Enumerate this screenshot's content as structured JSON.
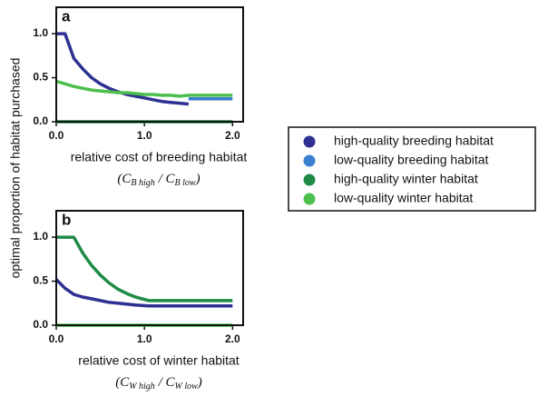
{
  "ylabel": "optimal proportion of habitat purchased",
  "legend_position": "right",
  "chart_data": [
    {
      "type": "line",
      "panel_label": "a",
      "xlabel": "relative cost of breeding habitat",
      "xlabel_formula": [
        "(C",
        "B high",
        " / C",
        "B low",
        ")"
      ],
      "xlim": [
        0,
        2.12
      ],
      "ylim": [
        0,
        1.3
      ],
      "xticks": [
        {
          "value": 0,
          "label": "0.0"
        },
        {
          "value": 1,
          "label": "1.0"
        },
        {
          "value": 2,
          "label": "2.0"
        }
      ],
      "yticks": [
        {
          "value": 0,
          "label": "0.0"
        },
        {
          "value": 0.5,
          "label": "0.5"
        },
        {
          "value": 1,
          "label": "1.0"
        }
      ],
      "x": [
        0,
        0.1,
        0.2,
        0.3,
        0.4,
        0.5,
        0.6,
        0.7,
        0.8,
        0.9,
        1.0,
        1.1,
        1.2,
        1.3,
        1.4,
        1.5,
        1.6,
        1.7,
        1.8,
        1.9,
        2.0
      ],
      "series": [
        {
          "name": "high-quality breeding habitat",
          "color": "#2e3192",
          "values": [
            1,
            1,
            0.72,
            0.6,
            0.5,
            0.43,
            0.38,
            0.34,
            0.31,
            0.29,
            0.27,
            0.25,
            0.23,
            0.22,
            0.21,
            0.2,
            null,
            null,
            null,
            null,
            null
          ]
        },
        {
          "name": "low-quality breeding habitat",
          "color": "#3b7fd1",
          "values": [
            null,
            null,
            null,
            null,
            null,
            null,
            null,
            null,
            null,
            null,
            null,
            null,
            null,
            null,
            null,
            0.26,
            0.26,
            0.26,
            0.26,
            0.26,
            0.26
          ]
        },
        {
          "name": "high-quality winter habitat",
          "color": "#1f8b47",
          "values": [
            0,
            0,
            0,
            0,
            0,
            0,
            0,
            0,
            0,
            0,
            0,
            0,
            0,
            0,
            0,
            0,
            0,
            0,
            0,
            0,
            0
          ]
        },
        {
          "name": "low-quality winter habitat",
          "color": "#4dbf4d",
          "values": [
            0.46,
            0.43,
            0.4,
            0.38,
            0.36,
            0.35,
            0.34,
            0.33,
            0.33,
            0.32,
            0.31,
            0.31,
            0.3,
            0.3,
            0.29,
            0.3,
            0.3,
            0.3,
            0.3,
            0.3,
            0.3
          ]
        }
      ]
    },
    {
      "type": "line",
      "panel_label": "b",
      "xlabel": "relative cost of winter habitat",
      "xlabel_formula": [
        "(C",
        "W high",
        " / C",
        "W low",
        ")"
      ],
      "xlim": [
        0,
        2.12
      ],
      "ylim": [
        0,
        1.3
      ],
      "xticks": [
        {
          "value": 0,
          "label": "0.0"
        },
        {
          "value": 1,
          "label": "1.0"
        },
        {
          "value": 2,
          "label": "2.0"
        }
      ],
      "yticks": [
        {
          "value": 0,
          "label": "0.0"
        },
        {
          "value": 0.5,
          "label": "0.5"
        },
        {
          "value": 1,
          "label": "1.0"
        }
      ],
      "x": [
        0,
        0.1,
        0.2,
        0.3,
        0.4,
        0.5,
        0.6,
        0.7,
        0.8,
        0.9,
        1.05,
        1.2,
        1.4,
        1.6,
        1.8,
        2.0
      ],
      "series": [
        {
          "color": "#2e3192",
          "values": [
            0.52,
            0.42,
            0.35,
            0.32,
            0.3,
            0.28,
            0.26,
            0.25,
            0.24,
            0.23,
            0.22,
            0.22,
            0.22,
            0.22,
            0.22,
            0.22
          ]
        },
        {
          "color": "#3b7fd1",
          "values": [
            null,
            null,
            null,
            null,
            null,
            null,
            null,
            null,
            null,
            null,
            null,
            null,
            null,
            null,
            null,
            null
          ]
        },
        {
          "color": "#1f8b47",
          "values": [
            1,
            1,
            1,
            0.82,
            0.68,
            0.57,
            0.48,
            0.41,
            0.36,
            0.32,
            0.28,
            0.28,
            0.28,
            0.28,
            0.28,
            0.28
          ]
        },
        {
          "color": "#4dbf4d",
          "values": [
            0,
            0,
            0,
            0,
            0,
            0,
            0,
            0,
            0,
            0,
            0,
            0,
            0,
            0,
            0,
            0
          ]
        }
      ]
    }
  ]
}
